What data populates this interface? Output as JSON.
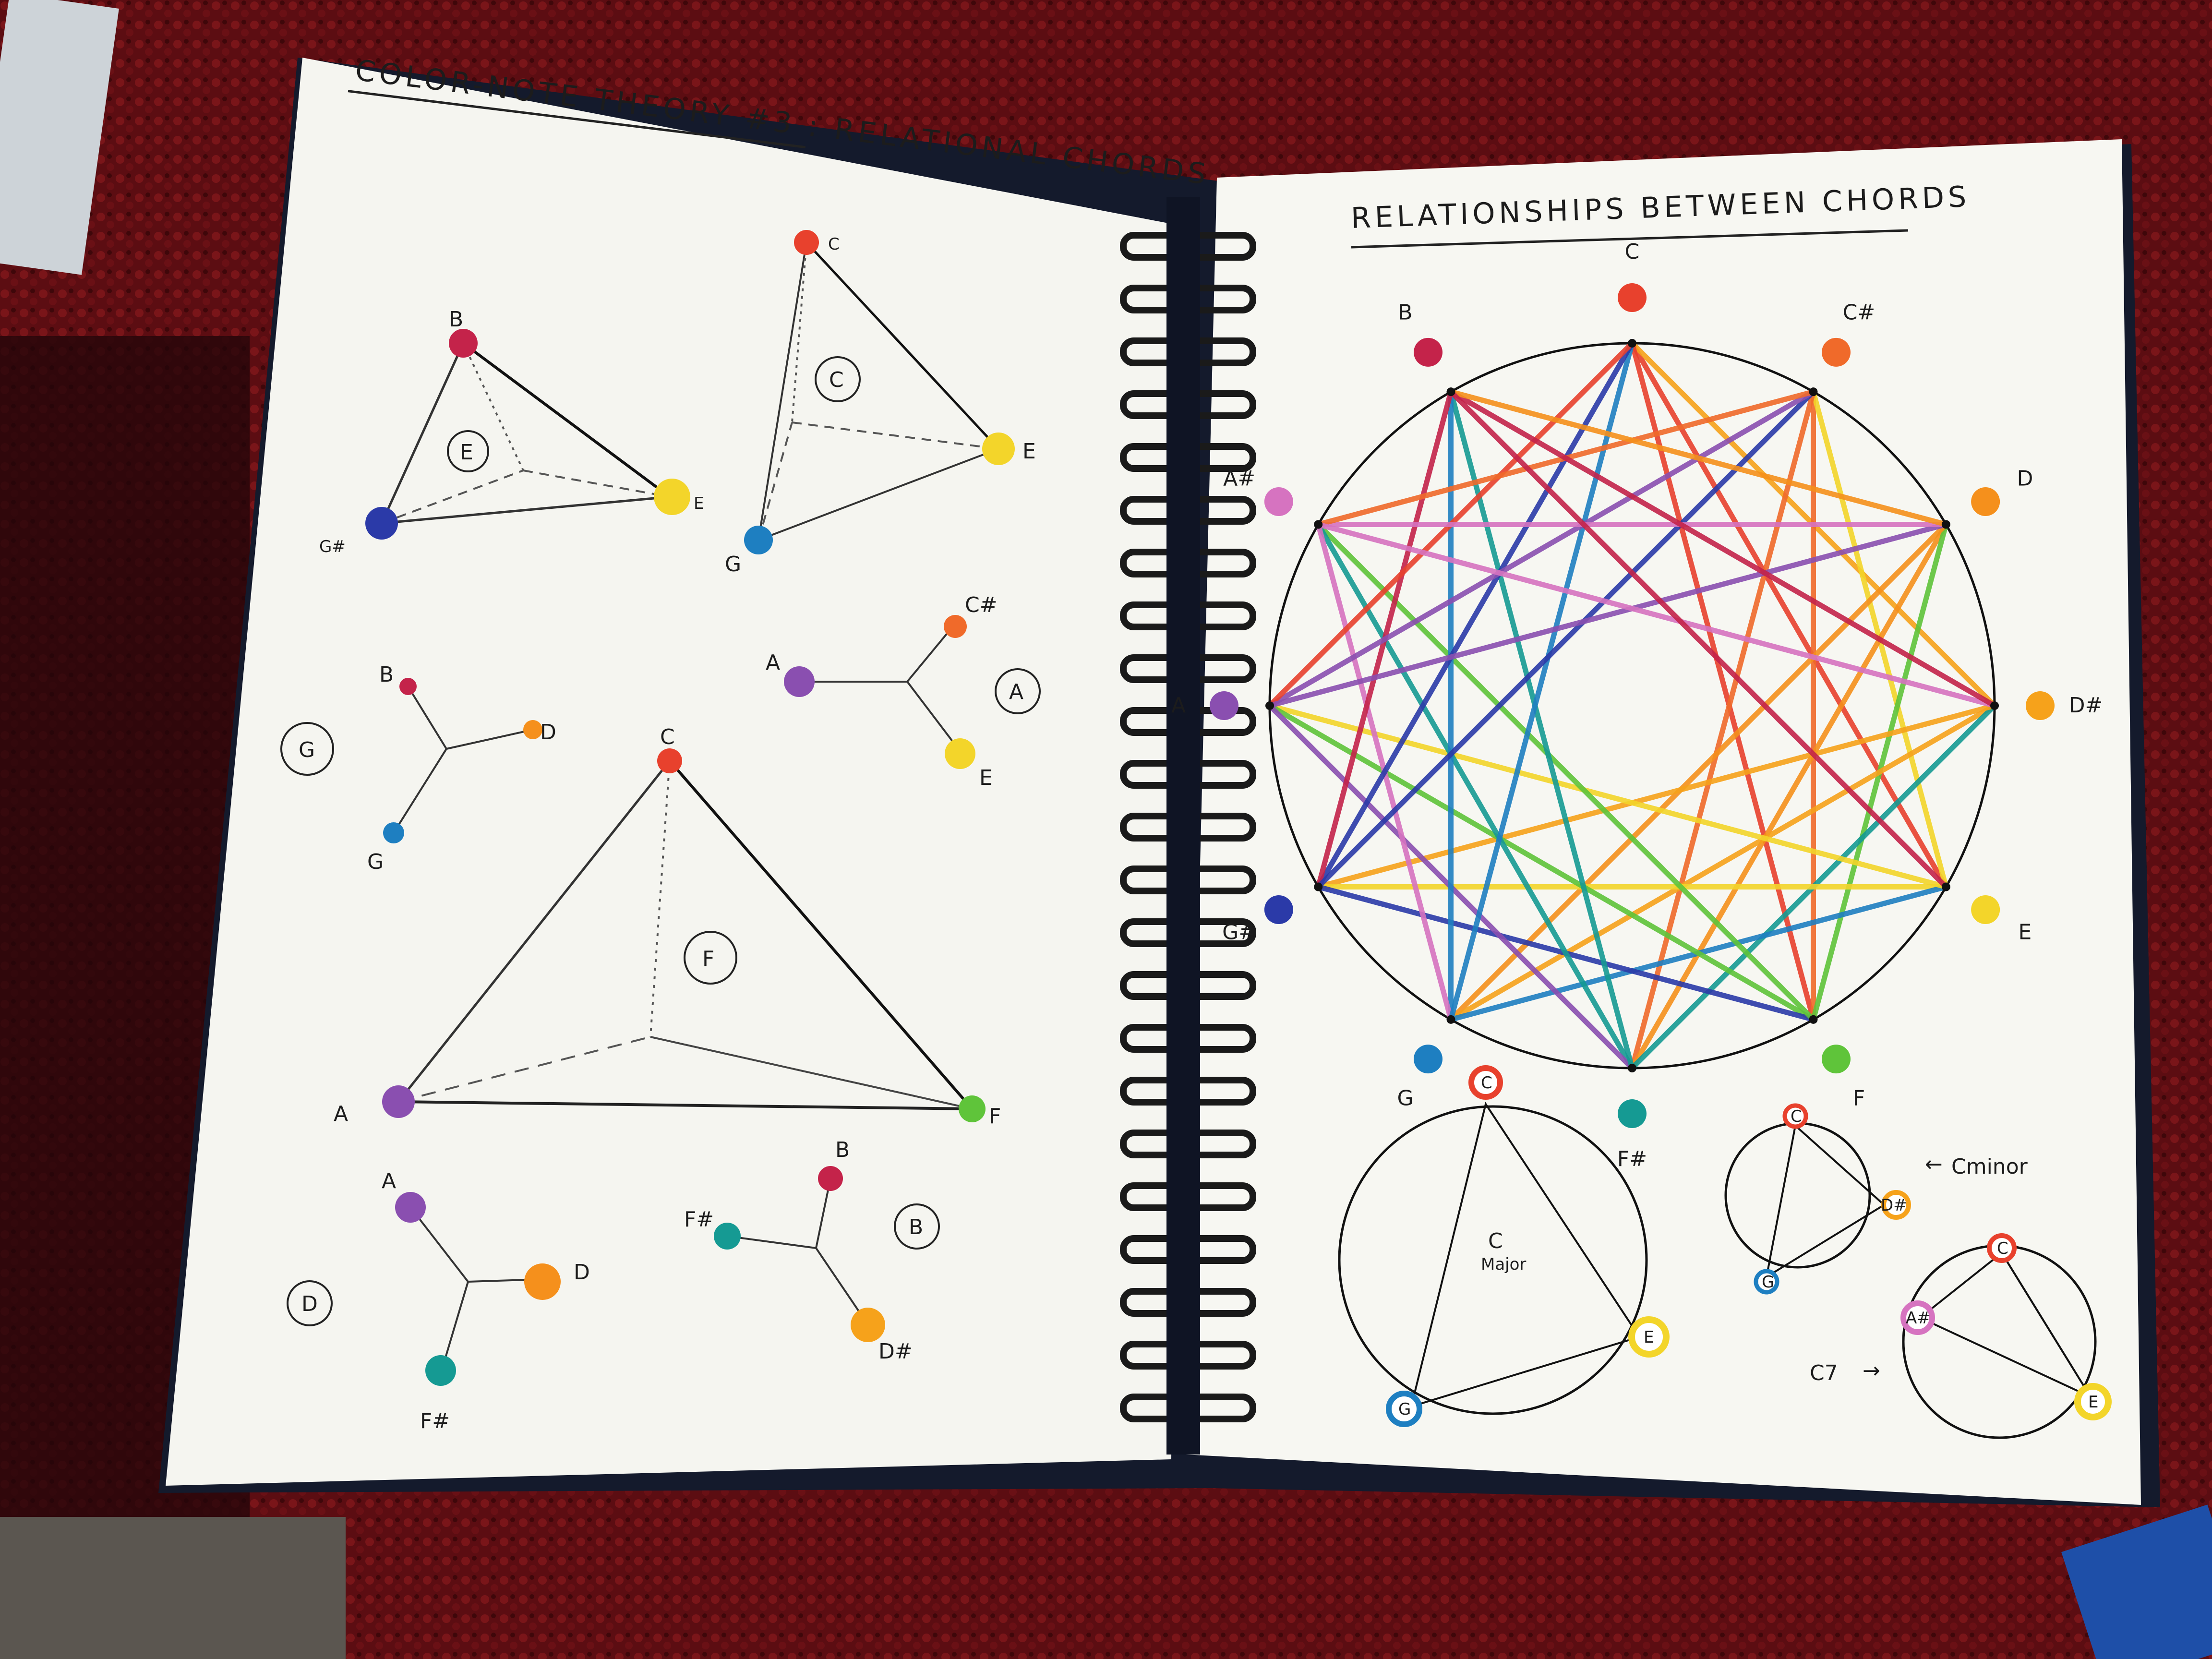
{
  "left_page": {
    "title": "COLOR-NOTE THEORY #3 : RELATIONAL CHORDS",
    "chords": [
      {
        "name": "E",
        "notes": [
          "B",
          "G#",
          "E"
        ]
      },
      {
        "name": "C",
        "notes": [
          "C",
          "G",
          "E"
        ]
      },
      {
        "name": "G",
        "notes": [
          "B",
          "D",
          "G"
        ]
      },
      {
        "name": "A",
        "notes": [
          "A",
          "C#",
          "E"
        ]
      },
      {
        "name": "F",
        "notes": [
          "C",
          "A",
          "F"
        ]
      },
      {
        "name": "D",
        "notes": [
          "A",
          "D",
          "F#"
        ]
      },
      {
        "name": "B",
        "notes": [
          "B",
          "F#",
          "D#"
        ]
      }
    ]
  },
  "right_page": {
    "title": "RELATIONSHIPS BETWEEN CHORDS",
    "wheel_notes": [
      {
        "note": "C",
        "color": "#e8412d"
      },
      {
        "note": "C#",
        "color": "#f06a2a"
      },
      {
        "note": "D",
        "color": "#f5901c"
      },
      {
        "note": "D#",
        "color": "#f6a21b"
      },
      {
        "note": "E",
        "color": "#f3d52a"
      },
      {
        "note": "F",
        "color": "#5fc43a"
      },
      {
        "note": "F#",
        "color": "#159a93"
      },
      {
        "note": "G",
        "color": "#1e7fc1"
      },
      {
        "note": "G#",
        "color": "#2b3aa8"
      },
      {
        "note": "A",
        "color": "#8a4fb0"
      },
      {
        "note": "A#",
        "color": "#d673c0"
      },
      {
        "note": "B",
        "color": "#c4234a"
      }
    ],
    "c_major": {
      "label": "C",
      "sublabel": "Major",
      "notes": [
        "C",
        "E",
        "G"
      ]
    },
    "c_minor": {
      "label": "Cminor",
      "arrow": "←",
      "notes": [
        "C",
        "D#",
        "G"
      ]
    },
    "c7": {
      "label": "C7",
      "arrow": "→",
      "notes": [
        "C",
        "E",
        "A#"
      ]
    }
  }
}
